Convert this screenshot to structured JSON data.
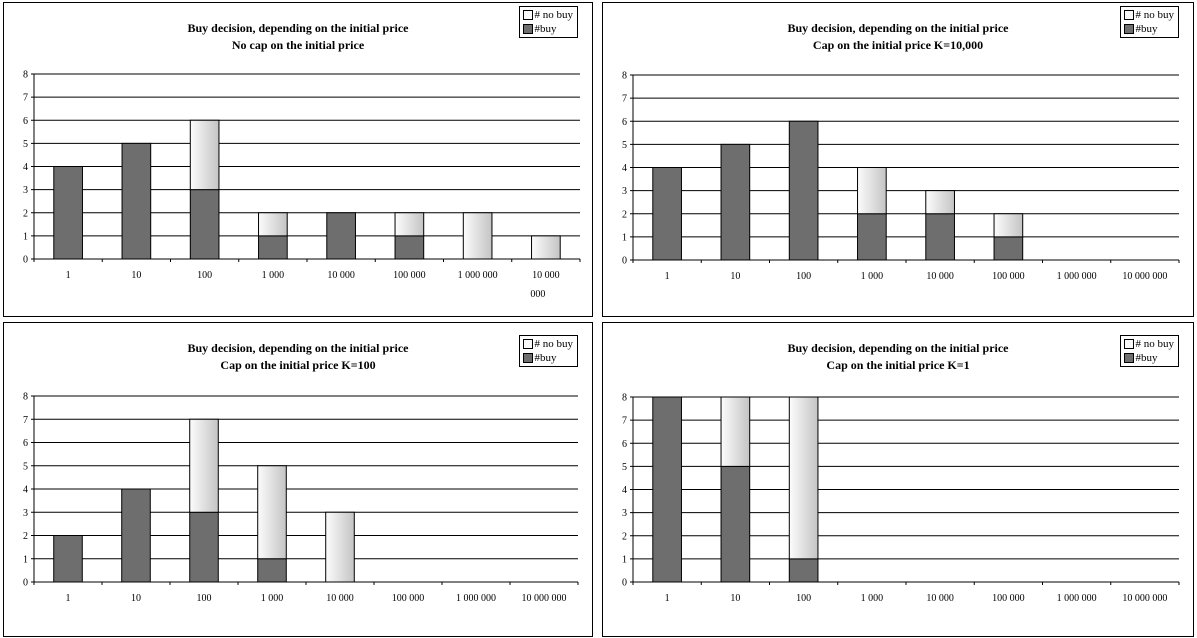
{
  "legend": {
    "no_buy": "# no buy",
    "buy": "#buy"
  },
  "colors": {
    "buy": "#6e6e6e",
    "no_buy_light": "#fcfcfc",
    "no_buy_dark": "#c4c4c4",
    "axis": "#000000"
  },
  "chart_data": [
    {
      "type": "bar",
      "stacked": true,
      "title": "Buy decision, depending on the initial price",
      "subtitle": "No cap on the initial price",
      "categories": [
        "1",
        "10",
        "100",
        "1 000",
        "10 000",
        "100 000",
        "1 000 000",
        "10 000 000"
      ],
      "series": [
        {
          "name": "#buy",
          "values": [
            4,
            5,
            3,
            1,
            2,
            1,
            0,
            0
          ]
        },
        {
          "name": "# no buy",
          "values": [
            0,
            0,
            3,
            1,
            0,
            1,
            2,
            1
          ]
        }
      ],
      "ylim": [
        0,
        8
      ],
      "yticks": [
        0,
        1,
        2,
        3,
        4,
        5,
        6,
        7,
        8
      ],
      "grid": true,
      "legend_position": "top-right"
    },
    {
      "type": "bar",
      "stacked": true,
      "title": "Buy decision, depending on the initial price",
      "subtitle": "Cap on the initial price K=10,000",
      "categories": [
        "1",
        "10",
        "100",
        "1 000",
        "10 000",
        "100 000",
        "1 000 000",
        "10 000 000"
      ],
      "series": [
        {
          "name": "#buy",
          "values": [
            4,
            5,
            6,
            2,
            2,
            1,
            0,
            0
          ]
        },
        {
          "name": "# no buy",
          "values": [
            0,
            0,
            0,
            2,
            1,
            1,
            0,
            0
          ]
        }
      ],
      "ylim": [
        0,
        8
      ],
      "yticks": [
        0,
        1,
        2,
        3,
        4,
        5,
        6,
        7,
        8
      ],
      "grid": true,
      "legend_position": "top-right"
    },
    {
      "type": "bar",
      "stacked": true,
      "title": "Buy decision, depending on the initial price",
      "subtitle": "Cap on the initial price K=100",
      "categories": [
        "1",
        "10",
        "100",
        "1 000",
        "10 000",
        "100 000",
        "1 000 000",
        "10 000 000"
      ],
      "series": [
        {
          "name": "#buy",
          "values": [
            2,
            4,
            3,
            1,
            0,
            0,
            0,
            0
          ]
        },
        {
          "name": "# no buy",
          "values": [
            0,
            0,
            4,
            4,
            3,
            0,
            0,
            0
          ]
        }
      ],
      "ylim": [
        0,
        8
      ],
      "yticks": [
        0,
        1,
        2,
        3,
        4,
        5,
        6,
        7,
        8
      ],
      "grid": true,
      "legend_position": "top-right"
    },
    {
      "type": "bar",
      "stacked": true,
      "title": "Buy decision, depending on the initial price",
      "subtitle": "Cap on the initial price K=1",
      "categories": [
        "1",
        "10",
        "100",
        "1 000",
        "10 000",
        "100 000",
        "1 000 000",
        "10 000 000"
      ],
      "series": [
        {
          "name": "#buy",
          "values": [
            8,
            5,
            1,
            0,
            0,
            0,
            0,
            0
          ]
        },
        {
          "name": "# no buy",
          "values": [
            0,
            3,
            7,
            0,
            0,
            0,
            0,
            0
          ]
        }
      ],
      "ylim": [
        0,
        8
      ],
      "yticks": [
        0,
        1,
        2,
        3,
        4,
        5,
        6,
        7,
        8
      ],
      "grid": true,
      "legend_position": "top-right"
    }
  ]
}
